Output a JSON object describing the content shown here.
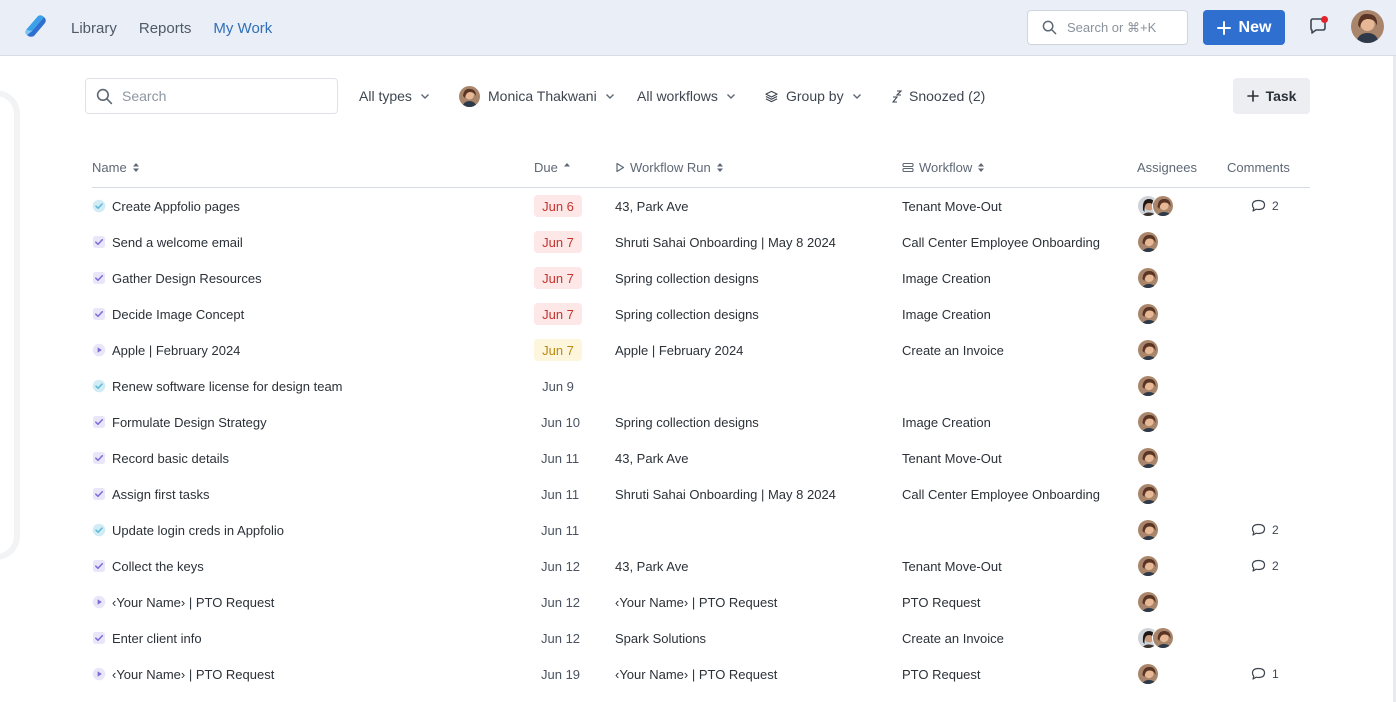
{
  "nav": {
    "links": [
      "Library",
      "Reports",
      "My Work"
    ],
    "active": "My Work",
    "search_placeholder": "Search or ⌘+K",
    "new_label": "New"
  },
  "filters": {
    "search_placeholder": "Search",
    "types": "All types",
    "user": "Monica Thakwani",
    "workflows": "All workflows",
    "group_by": "Group by",
    "snoozed": "Snoozed (2)",
    "task_button": "Task"
  },
  "table": {
    "headers": {
      "name": "Name",
      "due": "Due",
      "workflow_run": "Workflow Run",
      "workflow": "Workflow",
      "assignees": "Assignees",
      "comments": "Comments"
    },
    "rows": [
      {
        "icon": "check-circle-icon",
        "name": "Create Appfolio pages",
        "due": "Jun 6",
        "due_style": "red",
        "run": "43, Park Ave",
        "workflow": "Tenant Move-Out",
        "assignees": [
          "woman-dark-hair",
          "woman-brown-hair"
        ],
        "comments": "2"
      },
      {
        "icon": "checkbox-icon",
        "name": "Send a welcome email",
        "due": "Jun 7",
        "due_style": "red",
        "run": "Shruti Sahai Onboarding | May 8 2024",
        "workflow": "Call Center Employee Onboarding",
        "assignees": [
          "woman-brown-hair"
        ],
        "comments": ""
      },
      {
        "icon": "checkbox-icon",
        "name": "Gather Design Resources",
        "due": "Jun 7",
        "due_style": "red",
        "run": "Spring collection designs",
        "workflow": "Image Creation",
        "assignees": [
          "woman-brown-hair"
        ],
        "comments": ""
      },
      {
        "icon": "checkbox-icon",
        "name": "Decide Image Concept",
        "due": "Jun 7",
        "due_style": "red",
        "run": "Spring collection designs",
        "workflow": "Image Creation",
        "assignees": [
          "woman-brown-hair"
        ],
        "comments": ""
      },
      {
        "icon": "play-circle-icon",
        "name": "Apple | February 2024",
        "due": "Jun 7",
        "due_style": "yellow",
        "run": "Apple | February 2024",
        "workflow": "Create an Invoice",
        "assignees": [
          "woman-brown-hair"
        ],
        "comments": ""
      },
      {
        "icon": "check-circle-icon",
        "name": "Renew software license for design team",
        "due": "Jun 9",
        "due_style": "plain",
        "run": "",
        "workflow": "",
        "assignees": [
          "woman-brown-hair"
        ],
        "comments": ""
      },
      {
        "icon": "checkbox-icon",
        "name": "Formulate Design Strategy",
        "due": "Jun 10",
        "due_style": "plain",
        "run": "Spring collection designs",
        "workflow": "Image Creation",
        "assignees": [
          "woman-brown-hair"
        ],
        "comments": ""
      },
      {
        "icon": "checkbox-icon",
        "name": "Record basic details",
        "due": "Jun 11",
        "due_style": "plain",
        "run": "43, Park Ave",
        "workflow": "Tenant Move-Out",
        "assignees": [
          "woman-brown-hair"
        ],
        "comments": ""
      },
      {
        "icon": "checkbox-icon",
        "name": "Assign first tasks",
        "due": "Jun 11",
        "due_style": "plain",
        "run": "Shruti Sahai Onboarding | May 8 2024",
        "workflow": "Call Center Employee Onboarding",
        "assignees": [
          "woman-brown-hair"
        ],
        "comments": ""
      },
      {
        "icon": "check-circle-icon",
        "name": "Update login creds in Appfolio",
        "due": "Jun 11",
        "due_style": "plain",
        "run": "",
        "workflow": "",
        "assignees": [
          "woman-brown-hair"
        ],
        "comments": "2"
      },
      {
        "icon": "checkbox-icon",
        "name": "Collect the keys",
        "due": "Jun 12",
        "due_style": "plain",
        "run": "43, Park Ave",
        "workflow": "Tenant Move-Out",
        "assignees": [
          "woman-brown-hair"
        ],
        "comments": "2"
      },
      {
        "icon": "play-circle-icon",
        "name": "‹Your Name› | PTO Request",
        "due": "Jun 12",
        "due_style": "plain",
        "run": "‹Your Name› | PTO Request",
        "workflow": "PTO Request",
        "assignees": [
          "woman-brown-hair"
        ],
        "comments": ""
      },
      {
        "icon": "checkbox-icon",
        "name": "Enter client info",
        "due": "Jun 12",
        "due_style": "plain",
        "run": "Spark Solutions",
        "workflow": "Create an Invoice",
        "assignees": [
          "woman-dark-hair",
          "woman-brown-hair"
        ],
        "comments": ""
      },
      {
        "icon": "play-circle-icon",
        "name": "‹Your Name› | PTO Request",
        "due": "Jun 19",
        "due_style": "plain",
        "run": "‹Your Name› | PTO Request",
        "workflow": "PTO Request",
        "assignees": [
          "woman-brown-hair"
        ],
        "comments": "1"
      }
    ]
  },
  "colors": {
    "nav_bg": "#eaeef6",
    "accent": "#2f6fd0",
    "active_link": "#2f6fb8",
    "due_red_bg": "#fde7e7",
    "due_red_text": "#c2352f",
    "due_yellow_bg": "#fdf5dc",
    "due_yellow_text": "#b98a14",
    "checkbox": "#7b6fd6",
    "check_circle": "#5fb9d9"
  }
}
